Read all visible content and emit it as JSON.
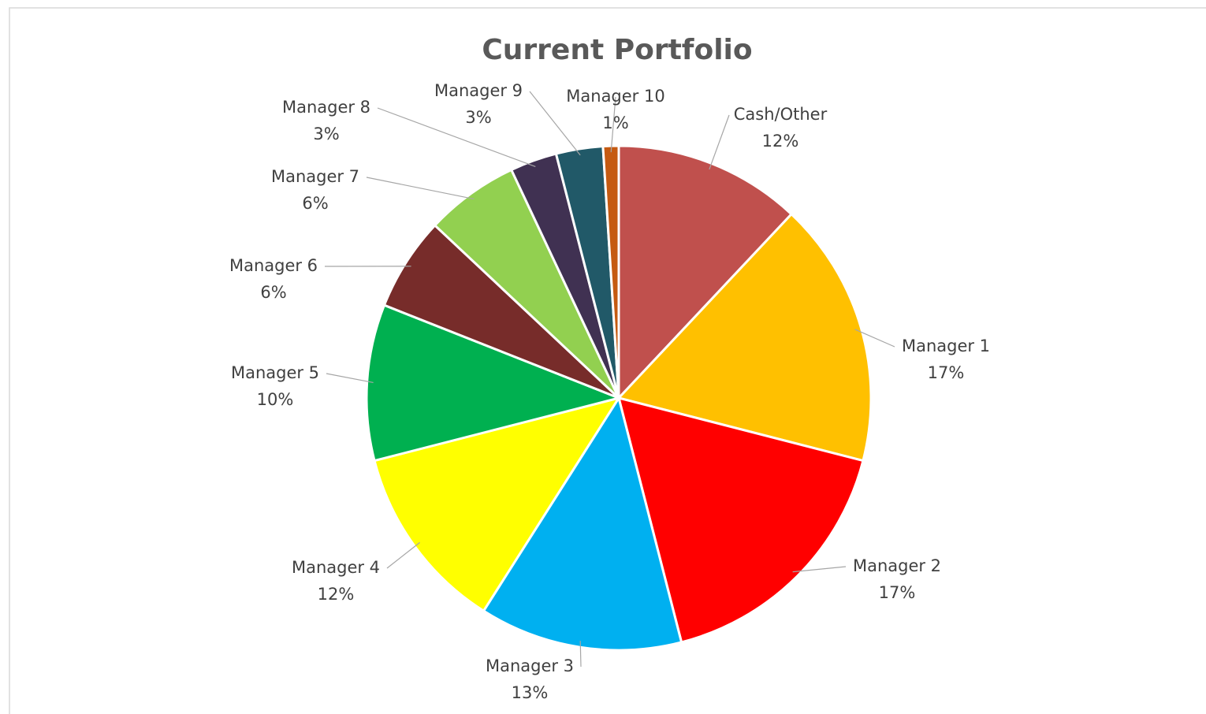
{
  "chart_data": {
    "type": "pie",
    "title": "Current Portfolio",
    "categories": [
      "Cash/Other",
      "Manager 1",
      "Manager 2",
      "Manager 3",
      "Manager 4",
      "Manager 5",
      "Manager 6",
      "Manager 7",
      "Manager 8",
      "Manager 9",
      "Manager 10"
    ],
    "values": [
      12,
      17,
      17,
      13,
      12,
      10,
      6,
      6,
      3,
      3,
      1
    ],
    "value_labels": [
      "12%",
      "17%",
      "17%",
      "13%",
      "12%",
      "10%",
      "6%",
      "6%",
      "3%",
      "3%",
      "1%"
    ],
    "colors": [
      "#c0504d",
      "#ffc000",
      "#ff0000",
      "#00b0f0",
      "#ffff00",
      "#00b050",
      "#772c2a",
      "#92d050",
      "#403152",
      "#215968",
      "#c55a11"
    ]
  }
}
